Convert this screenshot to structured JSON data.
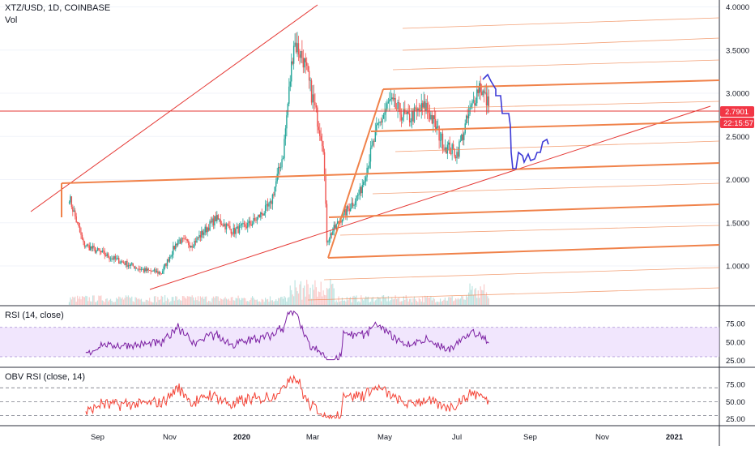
{
  "header": {
    "symbol": "XTZ/USD, 1D, COINBASE",
    "volume_label": "Vol"
  },
  "panes": {
    "rsi_title": "RSI (14, close)",
    "obv_title": "OBV RSI (close, 14)"
  },
  "price_badges": {
    "last_price": "2.7901",
    "countdown": "22:15:57"
  },
  "colors": {
    "up": "#26a69a",
    "down": "#ef5350",
    "trendline": "#e53935",
    "fib": "#f0824a",
    "projection": "#3d3ad6",
    "rsi": "#7b1fa2",
    "rsi_band": "#e8d5fb",
    "obv": "#f44336",
    "badge": "#f23645"
  },
  "chart_data": [
    {
      "type": "candlestick",
      "title": "XTZ/USD, 1D, COINBASE",
      "x_ticks": [
        "Sep",
        "Nov",
        "2020",
        "Mar",
        "May",
        "Jul",
        "Sep",
        "Nov",
        "2021"
      ],
      "y_ticks": [
        "1.0000",
        "1.5000",
        "2.0000",
        "2.5000",
        "3.0000",
        "3.5000",
        "4.0000"
      ],
      "ylim": [
        0.85,
        4.05
      ],
      "waypoints_date_close": [
        [
          "2019-08-08",
          1.8
        ],
        [
          "2019-08-20",
          1.25
        ],
        [
          "2019-09-15",
          1.08
        ],
        [
          "2019-10-10",
          0.95
        ],
        [
          "2019-10-25",
          0.92
        ],
        [
          "2019-11-08",
          1.3
        ],
        [
          "2019-11-20",
          1.25
        ],
        [
          "2019-12-10",
          1.55
        ],
        [
          "2019-12-25",
          1.4
        ],
        [
          "2020-01-10",
          1.5
        ],
        [
          "2020-01-25",
          1.7
        ],
        [
          "2020-02-05",
          2.3
        ],
        [
          "2020-02-14",
          3.6
        ],
        [
          "2020-02-22",
          3.4
        ],
        [
          "2020-03-05",
          2.7
        ],
        [
          "2020-03-10",
          2.4
        ],
        [
          "2020-03-13",
          1.3
        ],
        [
          "2020-03-25",
          1.55
        ],
        [
          "2020-04-10",
          1.85
        ],
        [
          "2020-04-25",
          2.6
        ],
        [
          "2020-05-05",
          2.9
        ],
        [
          "2020-05-20",
          2.7
        ],
        [
          "2020-06-05",
          2.85
        ],
        [
          "2020-06-20",
          2.4
        ],
        [
          "2020-07-01",
          2.3
        ],
        [
          "2020-07-10",
          2.7
        ],
        [
          "2020-07-20",
          3.1
        ],
        [
          "2020-07-28",
          2.85
        ]
      ],
      "volume_note": "volume histogram at bottom of price pane"
    },
    {
      "type": "line",
      "title": "RSI (14, close)",
      "y_ticks": [
        "25.00",
        "50.00",
        "75.00"
      ],
      "ylim": [
        20,
        95
      ],
      "band": [
        30,
        70
      ],
      "series_name": "RSI"
    },
    {
      "type": "line",
      "title": "OBV RSI (close, 14)",
      "y_ticks": [
        "25.00",
        "50.00",
        "75.00"
      ],
      "ylim": [
        20,
        95
      ],
      "dashed_levels": [
        30,
        50,
        70
      ],
      "series_name": "OBV RSI"
    }
  ]
}
